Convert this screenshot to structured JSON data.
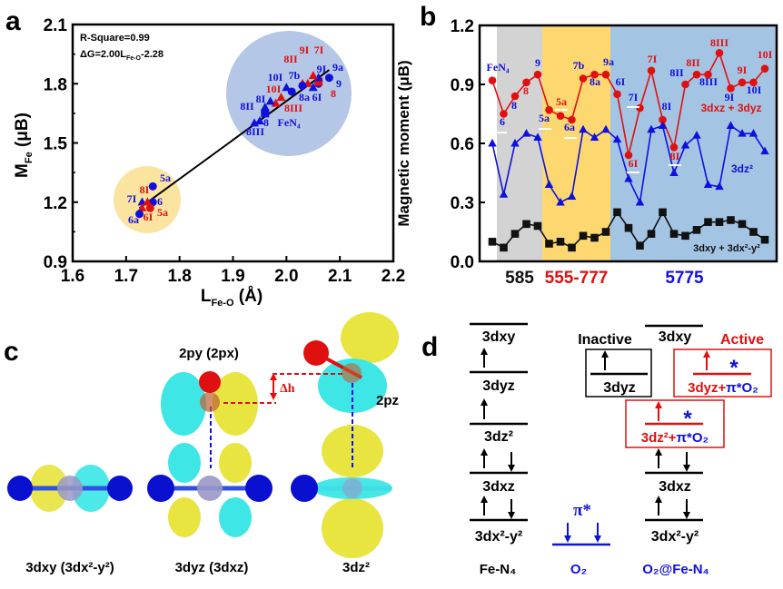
{
  "panels": {
    "a": "a",
    "b": "b",
    "c": "c",
    "d": "d"
  },
  "chart_data": [
    {
      "panel": "a",
      "type": "scatter",
      "xlabel": {
        "main": "L",
        "sub": "Fe-O",
        "unit": " (Å)"
      },
      "ylabel": {
        "main": "M",
        "sub": "Fe",
        "unit": " (μB)"
      },
      "xlim": [
        1.6,
        2.2
      ],
      "ylim": [
        0.9,
        2.1
      ],
      "xticks": [
        "1.6",
        "1.7",
        "1.8",
        "1.9",
        "2.0",
        "2.1",
        "2.2"
      ],
      "yticks": [
        "0.9",
        "1.2",
        "1.5",
        "1.8",
        "2.1"
      ],
      "annotations": {
        "r_square": "R-Square=0.99",
        "fit_main": "ΔG=2.00L",
        "fit_sub": "Fe-O",
        "fit_tail": "-2.28"
      },
      "fit_line": {
        "x": [
          1.725,
          2.08
        ],
        "y": [
          1.17,
          1.87
        ]
      },
      "highlight_colors": {
        "high_cluster": "#b5c7e6",
        "low_cluster": "#fbe3a0"
      },
      "colors": {
        "blue": "#1010dd",
        "red": "#e01010"
      },
      "points": [
        {
          "label": "9a",
          "x": 2.08,
          "y": 1.83,
          "color": "blue",
          "shape": "circle"
        },
        {
          "label": "9",
          "x": 2.06,
          "y": 1.8,
          "color": "blue",
          "shape": "circle"
        },
        {
          "label": "8",
          "x": 2.06,
          "y": 1.81,
          "color": "red",
          "shape": "square"
        },
        {
          "label": "9I",
          "x": 2.06,
          "y": 1.83,
          "color": "blue",
          "shape": "triangle"
        },
        {
          "label": "6I",
          "x": 2.05,
          "y": 1.78,
          "color": "blue",
          "shape": "triangle"
        },
        {
          "label": "7I",
          "x": 2.05,
          "y": 1.84,
          "color": "red",
          "shape": "triangle"
        },
        {
          "label": "9I",
          "x": 2.04,
          "y": 1.8,
          "color": "red",
          "shape": "triangle"
        },
        {
          "label": "8II",
          "x": 2.03,
          "y": 1.8,
          "color": "red",
          "shape": "triangle"
        },
        {
          "label": "7b",
          "x": 2.03,
          "y": 1.79,
          "color": "blue",
          "shape": "circle"
        },
        {
          "label": "8a",
          "x": 2.01,
          "y": 1.76,
          "color": "blue",
          "shape": "circle"
        },
        {
          "label": "10I",
          "x": 2.0,
          "y": 1.78,
          "color": "blue",
          "shape": "triangle"
        },
        {
          "label": "10I",
          "x": 1.99,
          "y": 1.73,
          "color": "red",
          "shape": "triangle"
        },
        {
          "label": "8III",
          "x": 1.98,
          "y": 1.7,
          "color": "red",
          "shape": "triangle"
        },
        {
          "label": "8I",
          "x": 1.97,
          "y": 1.71,
          "color": "blue",
          "shape": "triangle"
        },
        {
          "label": "8II",
          "x": 1.96,
          "y": 1.68,
          "color": "blue",
          "shape": "triangle"
        },
        {
          "label": "FeN₄",
          "x": 1.96,
          "y": 1.65,
          "color": "blue",
          "shape": "square"
        },
        {
          "label": "8",
          "x": 1.95,
          "y": 1.61,
          "color": "blue",
          "shape": "triangle"
        },
        {
          "label": "8III",
          "x": 1.94,
          "y": 1.6,
          "color": "blue",
          "shape": "triangle"
        },
        {
          "label": "5a",
          "x": 1.75,
          "y": 1.28,
          "color": "blue",
          "shape": "circle"
        },
        {
          "label": "6",
          "x": 1.75,
          "y": 1.2,
          "color": "blue",
          "shape": "circle"
        },
        {
          "label": "7I",
          "x": 1.73,
          "y": 1.2,
          "color": "blue",
          "shape": "triangle"
        },
        {
          "label": "8I",
          "x": 1.74,
          "y": 1.2,
          "color": "red",
          "shape": "triangle"
        },
        {
          "label": "5a",
          "x": 1.745,
          "y": 1.17,
          "color": "red",
          "shape": "circle"
        },
        {
          "label": "6I",
          "x": 1.73,
          "y": 1.17,
          "color": "red",
          "shape": "triangle"
        },
        {
          "label": "6a",
          "x": 1.725,
          "y": 1.14,
          "color": "blue",
          "shape": "circle"
        }
      ]
    },
    {
      "panel": "b",
      "type": "line",
      "ylabel": {
        "main": "Magnetic moment",
        "unit": " (μB)"
      },
      "ylim": [
        0.0,
        1.2
      ],
      "yticks": [
        "0.0",
        "0.3",
        "0.6",
        "0.9",
        "1.2"
      ],
      "groups": [
        {
          "label": "585",
          "color": "#111111",
          "fill": "#d3d3d3",
          "from": 1.6,
          "to": 5.4
        },
        {
          "label": "555-777",
          "color": "#e01010",
          "fill": "#fdd870",
          "from": 5.4,
          "to": 11.4
        },
        {
          "label": "5775",
          "color": "#1010dd",
          "fill": "#a4c4e4",
          "from": 11.4,
          "to": 26
        }
      ],
      "series": [
        {
          "name": "3dxz + 3dyz",
          "color": "#e01010",
          "marker": "circle",
          "values": [
            0.92,
            0.75,
            0.84,
            0.91,
            0.95,
            0.77,
            0.74,
            0.72,
            0.93,
            0.95,
            0.95,
            0.85,
            0.54,
            0.78,
            0.97,
            0.72,
            0.58,
            0.9,
            0.95,
            0.95,
            1.06,
            0.88,
            0.91,
            0.91,
            0.98
          ]
        },
        {
          "name": "3dz²",
          "color": "#1010dd",
          "marker": "triangle",
          "values": [
            0.6,
            0.34,
            0.6,
            0.65,
            0.63,
            0.39,
            0.3,
            0.33,
            0.67,
            0.63,
            0.67,
            0.62,
            0.42,
            0.3,
            0.67,
            0.69,
            0.45,
            0.59,
            0.64,
            0.39,
            0.38,
            0.69,
            0.65,
            0.65,
            0.56
          ]
        },
        {
          "name": "3dxy + 3dx²-y²",
          "color": "#111111",
          "marker": "square",
          "values": [
            0.1,
            0.07,
            0.14,
            0.19,
            0.18,
            0.09,
            0.1,
            0.07,
            0.13,
            0.12,
            0.15,
            0.25,
            0.17,
            0.08,
            0.14,
            0.25,
            0.14,
            0.13,
            0.16,
            0.2,
            0.2,
            0.21,
            0.19,
            0.15,
            0.11
          ]
        }
      ],
      "point_labels": [
        {
          "text": "FeN₄",
          "color": "blue"
        },
        {
          "text": "6",
          "color": "blue"
        },
        {
          "text": "8",
          "color": "blue"
        },
        {
          "text": "8",
          "color": "red"
        },
        {
          "text": "9",
          "color": "blue"
        },
        {
          "text": "5a",
          "color": "blue"
        },
        {
          "text": "5a",
          "color": "red"
        },
        {
          "text": "6a",
          "color": "blue"
        },
        {
          "text": "7b",
          "color": "blue"
        },
        {
          "text": "8a",
          "color": "blue"
        },
        {
          "text": "9a",
          "color": "blue"
        },
        {
          "text": "6I",
          "color": "blue"
        },
        {
          "text": "7I",
          "color": "blue"
        },
        {
          "text": "6I",
          "color": "red"
        },
        {
          "text": "7I",
          "color": "red"
        },
        {
          "text": "8I",
          "color": "blue"
        },
        {
          "text": "8I",
          "color": "red"
        },
        {
          "text": "8II",
          "color": "blue"
        },
        {
          "text": "8II",
          "color": "red"
        },
        {
          "text": "8III",
          "color": "blue"
        },
        {
          "text": "8III",
          "color": "red"
        },
        {
          "text": "9I",
          "color": "blue"
        },
        {
          "text": "9I",
          "color": "red"
        },
        {
          "text": "10I",
          "color": "blue"
        },
        {
          "text": "10I",
          "color": "red"
        }
      ]
    }
  ],
  "panel_c": {
    "label_2py": "2py (2px)",
    "label_2pz": "2pz",
    "label_dh": "Δh",
    "caption_left": "3dxy (3dx²-y²)",
    "caption_mid": "3dyz (3dxz)",
    "caption_right": "3dz²",
    "colors": {
      "lobe_pos": "#e8e440",
      "lobe_neg": "#3ee6e6",
      "fe": "#9a98c8",
      "n": "#0a10d0",
      "o": "#e01010"
    }
  },
  "panel_d": {
    "fen4": {
      "levels": [
        "3dxy",
        "3dyz",
        "3dz²",
        "3dxz",
        "3dx²-y²"
      ],
      "label": "Fe-N₄"
    },
    "o2": {
      "level": "π*",
      "label": "O₂"
    },
    "o2fen4": {
      "top": "3dxy",
      "xz": "3dxz",
      "x2y2": "3dx²-y²",
      "label": "O₂@Fe-N₄"
    },
    "inactive": {
      "title": "Inactive",
      "level": "3dyz"
    },
    "active": {
      "title": "Active",
      "dyz_main": "3dyz+",
      "dz2_main": "3dz²+",
      "pi_o2": "π*O₂",
      "star": "*"
    }
  }
}
